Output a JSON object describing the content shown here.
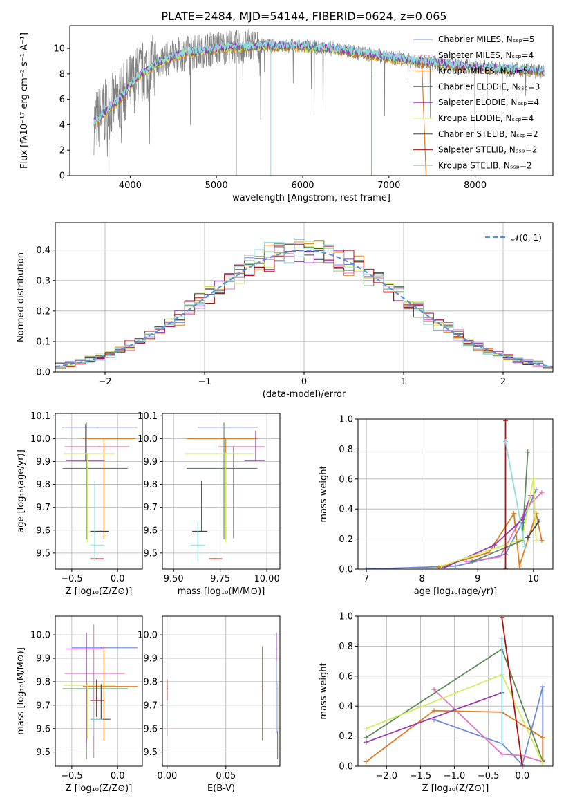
{
  "colors": {
    "chabrier_miles": "#6d86e0",
    "salpeter_miles": "#e377c2",
    "kroupa_miles": "#e07a1f",
    "chabrier_elodie": "#5b8a5a",
    "salpeter_elodie": "#9b35b5",
    "kroupa_elodie": "#d4ee5a",
    "chabrier_stelib": "#444444",
    "salpeter_stelib": "#b01010",
    "kroupa_stelib": "#8fdbe0",
    "spectrum": "#808080",
    "gaussian": "#5b8fd6"
  },
  "chart_data": [
    {
      "id": "spectrum",
      "type": "line",
      "title": "PLATE=2484, MJD=54144, FIBERID=0624, z=0.065",
      "xlabel": "wavelength [Angstrom, rest frame]",
      "ylabel": "Flux [fλ10⁻¹⁷ erg cm⁻² s⁻¹ A⁻¹]",
      "xlim": [
        3300,
        8900
      ],
      "ylim": [
        0,
        11.8
      ],
      "xticks": [
        "4000",
        "5000",
        "6000",
        "7000",
        "8000"
      ],
      "yticks": [
        "0",
        "2",
        "4",
        "6",
        "8",
        "10"
      ],
      "grid": false,
      "legend_position": "top-right",
      "legend": [
        "Chabrier MILES, Nₛₛₚ=5",
        "Salpeter MILES, Nₛₛₚ=4",
        "Kroupa MILES, Nₛₛₚ=5",
        "Chabrier ELODIE, Nₛₛₚ=3",
        "Salpeter ELODIE, Nₛₛₚ=4",
        "Kroupa ELODIE, Nₛₛₚ=4",
        "Chabrier STELIB, Nₛₛₚ=2",
        "Salpeter STELIB, Nₛₛₚ=2",
        "Kroupa STELIB, Nₛₛₚ=2"
      ],
      "continuum": {
        "x": [
          3580,
          3650,
          3750,
          3850,
          3950,
          4050,
          4150,
          4300,
          4500,
          4700,
          4900,
          5100,
          5300,
          5500,
          5700,
          5900,
          6100,
          6300,
          6500,
          6700,
          6900,
          7100,
          7300,
          7500,
          7700,
          7900,
          8100,
          8300,
          8500,
          8800
        ],
        "y": [
          4.2,
          4.6,
          5.3,
          5.8,
          6.6,
          7.5,
          8.1,
          8.8,
          9.4,
          9.7,
          9.9,
          10.1,
          10.1,
          10.2,
          10.2,
          10.2,
          10.1,
          10.0,
          9.8,
          9.6,
          9.4,
          9.2,
          9.0,
          8.9,
          8.7,
          8.6,
          8.5,
          8.4,
          8.3,
          8.2
        ]
      }
    },
    {
      "id": "residuals",
      "type": "line",
      "xlabel": "(data-model)/error",
      "ylabel": "Normed distribution",
      "xlim": [
        -2.5,
        2.5
      ],
      "ylim": [
        0,
        0.49
      ],
      "xticks": [
        "−2",
        "−1",
        "0",
        "1",
        "2"
      ],
      "yticks": [
        "0.0",
        "0.1",
        "0.2",
        "0.3",
        "0.4"
      ],
      "grid": true,
      "legend_position": "top-right",
      "legend": [
        "𝒩(0, 1)"
      ]
    },
    {
      "id": "z-age",
      "type": "scatter",
      "xlabel": "Z [log₁₀(Z/Z⊙)]",
      "ylabel": "age  [log₁₀(age/yr)]",
      "xlim": [
        -0.68,
        0.27
      ],
      "ylim": [
        9.43,
        10.11
      ],
      "xticks": [
        "−0.5",
        "0.0"
      ],
      "yticks": [
        "9.5",
        "9.6",
        "9.7",
        "9.8",
        "9.9",
        "10.0",
        "10.1"
      ],
      "grid": true,
      "points": [
        {
          "x": -0.22,
          "y": 10.05,
          "xerr": [
            0.39,
            0.44
          ],
          "yerr": [
            0,
            0
          ],
          "color": "chabrier_miles"
        },
        {
          "x": -0.2,
          "y": 9.965,
          "xerr": [
            0.38,
            0.33
          ],
          "yerr": [
            0,
            0
          ],
          "color": "salpeter_miles"
        },
        {
          "x": -0.15,
          "y": 10.0,
          "xerr": [
            0.23,
            0.34
          ],
          "yerr": [
            0.44,
            0
          ],
          "color": "kroupa_miles"
        },
        {
          "x": -0.34,
          "y": 9.87,
          "xerr": [
            0.26,
            0.45
          ],
          "yerr": [
            0.31,
            0.2
          ],
          "color": "chabrier_elodie"
        },
        {
          "x": -0.35,
          "y": 9.905,
          "xerr": [
            0.21,
            0.21
          ],
          "yerr": [
            0,
            0.16
          ],
          "color": "salpeter_elodie"
        },
        {
          "x": -0.33,
          "y": 9.935,
          "xerr": [
            0.26,
            0.3
          ],
          "yerr": [
            0.39,
            0
          ],
          "color": "kroupa_elodie"
        },
        {
          "x": -0.19,
          "y": 9.595,
          "xerr": [
            0.11,
            0.09
          ],
          "yerr": [
            0,
            0
          ],
          "color": "chabrier_stelib"
        },
        {
          "x": -0.23,
          "y": 9.475,
          "xerr": [
            0.07,
            0.08
          ],
          "yerr": [
            0,
            0
          ],
          "color": "salpeter_stelib"
        },
        {
          "x": -0.25,
          "y": 9.535,
          "xerr": [
            0.05,
            0.1
          ],
          "yerr": [
            0.07,
            0.28
          ],
          "color": "kroupa_stelib"
        }
      ]
    },
    {
      "id": "mass-age",
      "type": "scatter",
      "xlabel": "mass [log₁₀(M/M⊙)]",
      "ylabel": "",
      "xlim": [
        9.44,
        10.07
      ],
      "ylim": [
        9.43,
        10.11
      ],
      "xticks": [
        "9.50",
        "9.75",
        "10.00"
      ],
      "yticks": [
        "9.5",
        "9.6",
        "9.7",
        "9.8",
        "9.9",
        "10.0",
        "10.1"
      ],
      "grid": true,
      "points": [
        {
          "x": 9.8,
          "y": 10.05,
          "xerr": [
            0.17,
            0.15
          ],
          "yerr": [
            0,
            0
          ],
          "color": "chabrier_miles"
        },
        {
          "x": 9.82,
          "y": 9.965,
          "xerr": [
            0.08,
            0.17
          ],
          "yerr": [
            0.4,
            0
          ],
          "color": "salpeter_miles"
        },
        {
          "x": 9.78,
          "y": 10.0,
          "xerr": [
            0.21,
            0.17
          ],
          "yerr": [
            0.44,
            0
          ],
          "color": "kroupa_miles"
        },
        {
          "x": 9.77,
          "y": 9.87,
          "xerr": [
            0.2,
            0.18
          ],
          "yerr": [
            0.31,
            0.2
          ],
          "color": "chabrier_elodie"
        },
        {
          "x": 9.94,
          "y": 9.905,
          "xerr": [
            0.06,
            0.05
          ],
          "yerr": [
            0,
            0.13
          ],
          "color": "salpeter_elodie"
        },
        {
          "x": 9.78,
          "y": 9.935,
          "xerr": [
            0.22,
            0.15
          ],
          "yerr": [
            0.39,
            0
          ],
          "color": "kroupa_elodie"
        },
        {
          "x": 9.65,
          "y": 9.595,
          "xerr": [
            0.05,
            0.03
          ],
          "yerr": [
            0,
            0.22
          ],
          "color": "chabrier_stelib"
        },
        {
          "x": 9.72,
          "y": 9.475,
          "xerr": [
            0.03,
            0.04
          ],
          "yerr": [
            0,
            0
          ],
          "color": "salpeter_stelib"
        },
        {
          "x": 9.63,
          "y": 9.535,
          "xerr": [
            0.04,
            0.04
          ],
          "yerr": [
            0.07,
            0.1
          ],
          "color": "kroupa_stelib"
        }
      ]
    },
    {
      "id": "age-weight",
      "type": "line",
      "xlabel": "age  [log₁₀(age/yr)]",
      "ylabel": "mass weight",
      "xlim": [
        6.85,
        10.35
      ],
      "ylim": [
        0,
        1.0
      ],
      "xticks": [
        "7",
        "8",
        "9",
        "10"
      ],
      "yticks": [
        "0.0",
        "0.2",
        "0.4",
        "0.6",
        "0.8",
        "1.0"
      ],
      "grid": true,
      "series": [
        {
          "color": "chabrier_miles",
          "x": [
            7.0,
            8.6,
            9.2,
            9.5,
            9.8,
            10.05
          ],
          "y": [
            0.0,
            0.02,
            0.07,
            0.1,
            0.31,
            0.53
          ]
        },
        {
          "color": "salpeter_miles",
          "x": [
            8.8,
            9.4,
            9.9,
            10.15
          ],
          "y": [
            0.05,
            0.08,
            0.42,
            0.51
          ]
        },
        {
          "color": "kroupa_miles",
          "x": [
            8.3,
            9.2,
            9.65,
            9.75,
            10.05,
            10.15
          ],
          "y": [
            0.01,
            0.11,
            0.37,
            0.02,
            0.37,
            0.19
          ]
        },
        {
          "color": "chabrier_elodie",
          "x": [
            8.9,
            9.8,
            9.9
          ],
          "y": [
            0.05,
            0.19,
            0.78
          ]
        },
        {
          "color": "salpeter_elodie",
          "x": [
            8.4,
            9.3,
            9.8,
            9.95
          ],
          "y": [
            0.01,
            0.16,
            0.33,
            0.49
          ]
        },
        {
          "color": "kroupa_elodie",
          "x": [
            8.35,
            9.8,
            10.0,
            10.05
          ],
          "y": [
            0.02,
            0.2,
            0.6,
            0.19
          ]
        },
        {
          "color": "chabrier_stelib",
          "x": [
            9.9,
            10.1
          ],
          "y": [
            0.21,
            0.32
          ]
        },
        {
          "color": "salpeter_stelib",
          "x": [
            9.5,
            9.5
          ],
          "y": [
            0.0,
            0.99
          ]
        },
        {
          "color": "kroupa_stelib",
          "x": [
            9.5,
            9.85
          ],
          "y": [
            0.85,
            0.15
          ]
        }
      ]
    },
    {
      "id": "z-mass",
      "type": "scatter",
      "xlabel": "Z [log₁₀(Z/Z⊙)]",
      "ylabel": "mass [log₁₀(M/M⊙)]",
      "xlim": [
        -0.68,
        0.27
      ],
      "ylim": [
        9.44,
        10.08
      ],
      "xticks": [
        "−0.5",
        "0.0"
      ],
      "yticks": [
        "9.5",
        "9.6",
        "9.7",
        "9.8",
        "9.9",
        "10.0"
      ],
      "grid": true,
      "points": [
        {
          "x": -0.18,
          "y": 9.945,
          "xerr": [
            0.32,
            0.4
          ],
          "yerr": [
            0,
            0
          ],
          "color": "chabrier_miles"
        },
        {
          "x": -0.26,
          "y": 9.835,
          "xerr": [
            0.32,
            0.34
          ],
          "yerr": [
            0.36,
            0.21
          ],
          "color": "salpeter_miles"
        },
        {
          "x": -0.15,
          "y": 9.78,
          "xerr": [
            0.23,
            0.37
          ],
          "yerr": [
            0.23,
            0.17
          ],
          "color": "kroupa_miles"
        },
        {
          "x": -0.34,
          "y": 9.77,
          "xerr": [
            0.26,
            0.45
          ],
          "yerr": [
            0.3,
            0
          ],
          "color": "chabrier_elodie"
        },
        {
          "x": -0.34,
          "y": 9.94,
          "xerr": [
            0.22,
            0.2
          ],
          "yerr": [
            0.4,
            0.07
          ],
          "color": "salpeter_elodie"
        },
        {
          "x": -0.33,
          "y": 9.785,
          "xerr": [
            0.26,
            0.31
          ],
          "yerr": [
            0.23,
            0.01
          ],
          "color": "kroupa_elodie"
        },
        {
          "x": -0.18,
          "y": 9.64,
          "xerr": [
            0.11,
            0.1
          ],
          "yerr": [
            0,
            0.15
          ],
          "color": "chabrier_stelib"
        },
        {
          "x": -0.23,
          "y": 9.72,
          "xerr": [
            0.07,
            0.08
          ],
          "yerr": [
            0.07,
            0.09
          ],
          "color": "salpeter_stelib"
        },
        {
          "x": -0.26,
          "y": 9.64,
          "xerr": [
            0.04,
            0.1
          ],
          "yerr": [
            0.07,
            0.08
          ],
          "color": "kroupa_stelib"
        }
      ]
    },
    {
      "id": "ebv-mass",
      "type": "scatter",
      "xlabel": "E(B-V)",
      "ylabel": "",
      "xlim": [
        -0.004,
        0.096
      ],
      "ylim": [
        9.44,
        10.08
      ],
      "xticks": [
        "0.00",
        "0.05"
      ],
      "yticks": [
        "9.5",
        "9.6",
        "9.7",
        "9.8",
        "9.9",
        "10.0"
      ],
      "grid": true,
      "points": [
        {
          "x": 0.0,
          "y": 9.77,
          "xerr": [
            0,
            0
          ],
          "yerr": [
            0.2,
            0.04
          ],
          "color": "salpeter_stelib"
        },
        {
          "x": 0.0,
          "y": 9.64,
          "xerr": [
            0,
            0
          ],
          "yerr": [
            0.07,
            0.08
          ],
          "color": "kroupa_stelib"
        },
        {
          "x": 0.081,
          "y": 9.78,
          "xerr": [
            0,
            0
          ],
          "yerr": [
            0.23,
            0.17
          ],
          "color": "kroupa_miles"
        },
        {
          "x": 0.093,
          "y": 9.8,
          "xerr": [
            0,
            0
          ],
          "yerr": [
            0.22,
            0.2
          ],
          "color": "chabrier_miles"
        },
        {
          "x": 0.093,
          "y": 9.94,
          "xerr": [
            0,
            0
          ],
          "yerr": [
            0.05,
            0.07
          ],
          "color": "salpeter_elodie"
        },
        {
          "x": 0.094,
          "y": 9.77,
          "xerr": [
            0,
            0
          ],
          "yerr": [
            0.3,
            0.01
          ],
          "color": "chabrier_elodie"
        },
        {
          "x": 0.094,
          "y": 9.79,
          "xerr": [
            0,
            0
          ],
          "yerr": [
            0.2,
            0.01
          ],
          "color": "kroupa_elodie"
        }
      ]
    },
    {
      "id": "z-weight",
      "type": "line",
      "xlabel": "Z [log₁₀(Z/Z⊙)]",
      "ylabel": "mass weight",
      "xlim": [
        -2.42,
        0.45
      ],
      "ylim": [
        0,
        1.0
      ],
      "xticks": [
        "−2.0",
        "−1.5",
        "−1.0",
        "−0.5",
        "0.0"
      ],
      "yticks": [
        "0.0",
        "0.2",
        "0.4",
        "0.6",
        "0.8",
        "1.0"
      ],
      "grid": true,
      "series": [
        {
          "color": "chabrier_miles",
          "x": [
            -1.3,
            -0.3,
            0.0,
            0.3,
            0.3
          ],
          "y": [
            0.31,
            0.15,
            0.01,
            0.53,
            0.04
          ]
        },
        {
          "color": "salpeter_miles",
          "x": [
            -1.3,
            -0.3,
            0.0,
            0.3
          ],
          "y": [
            0.51,
            0.08,
            0.07,
            0.03
          ]
        },
        {
          "color": "kroupa_miles",
          "x": [
            -2.3,
            -1.3,
            -0.3,
            0.3,
            0.3
          ],
          "y": [
            0.03,
            0.37,
            0.36,
            0.19,
            0.02
          ]
        },
        {
          "color": "chabrier_elodie",
          "x": [
            -2.3,
            -0.3,
            0.3
          ],
          "y": [
            0.19,
            0.78,
            0.03
          ]
        },
        {
          "color": "salpeter_elodie",
          "x": [
            -2.3,
            -0.3
          ],
          "y": [
            0.16,
            0.49
          ]
        },
        {
          "color": "kroupa_elodie",
          "x": [
            -2.3,
            -0.3,
            0.3
          ],
          "y": [
            0.25,
            0.61,
            0.02
          ]
        },
        {
          "color": "salpeter_stelib",
          "x": [
            -0.3,
            0.0
          ],
          "y": [
            0.99,
            0.0
          ]
        },
        {
          "color": "kroupa_stelib",
          "x": [
            -0.3,
            -0.3
          ],
          "y": [
            0.85,
            0.15
          ]
        }
      ]
    }
  ]
}
